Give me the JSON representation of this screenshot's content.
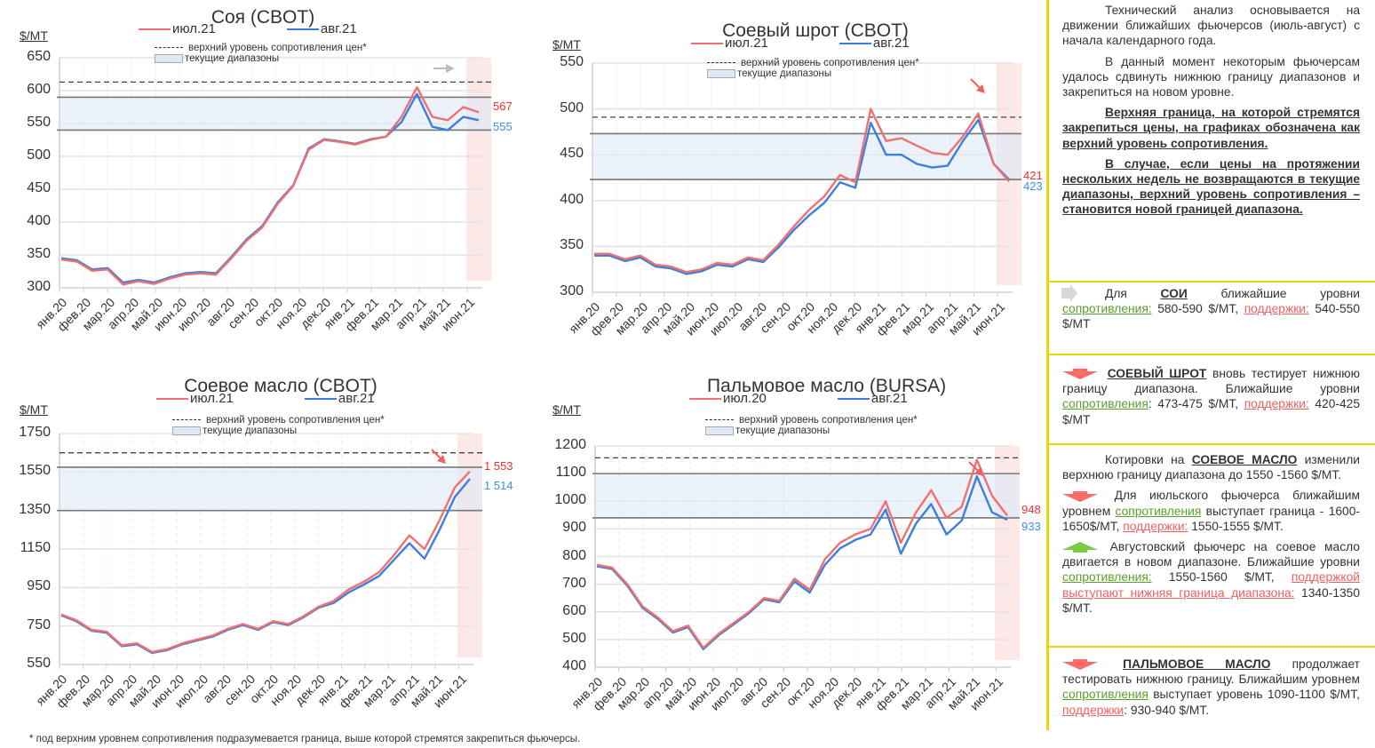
{
  "unit_label": "$/MT",
  "legend_resistance": "верхний уровень сопротивления цен*",
  "legend_range": "текущие диапазоны",
  "footnote": "* под верхним уровнем сопротивления подразумевается граница, выше которой стремятся закрепиться фьючерсы.",
  "colors": {
    "jul": "#f07070",
    "aug": "#3d7fdc",
    "range": "#dde9f7",
    "highlight": "#fde8e8",
    "panel_border": "#e6d800",
    "green": "#5aa02c",
    "red": "#f06060"
  },
  "chart_data": [
    {
      "type": "line",
      "title": "Соя (CBOT)",
      "ylabel": "$/MT",
      "ylim": [
        300,
        650
      ],
      "yticks": [
        300,
        350,
        400,
        450,
        500,
        550,
        600,
        650
      ],
      "categories": [
        "янв.20",
        "фев.20",
        "мар.20",
        "апр.20",
        "май.20",
        "июн.20",
        "июл.20",
        "авг.20",
        "сен.20",
        "окт.20",
        "ноя.20",
        "дек.20",
        "янв.21",
        "фев.21",
        "мар.21",
        "апр.21",
        "май.21",
        "июн.21"
      ],
      "resistance": 613,
      "range": [
        540,
        590
      ],
      "hint_arrow": "right",
      "series": [
        {
          "name": "июл.21",
          "end_label": "567",
          "values": [
            343,
            340,
            326,
            328,
            305,
            310,
            306,
            314,
            320,
            322,
            320,
            345,
            372,
            392,
            428,
            455,
            510,
            525,
            522,
            518,
            525,
            530,
            560,
            605,
            560,
            555,
            575,
            567
          ]
        },
        {
          "name": "авг.21",
          "end_label": "555",
          "values": [
            345,
            342,
            328,
            330,
            308,
            312,
            308,
            316,
            322,
            324,
            322,
            347,
            374,
            394,
            430,
            456,
            512,
            526,
            523,
            519,
            526,
            530,
            552,
            595,
            545,
            540,
            560,
            555
          ]
        }
      ]
    },
    {
      "type": "line",
      "title": "Соевый шрот (CBOT)",
      "ylabel": "$/MT",
      "ylim": [
        300,
        550
      ],
      "yticks": [
        300,
        350,
        400,
        450,
        500,
        550
      ],
      "categories": [
        "янв.20",
        "фев.20",
        "мар.20",
        "апр.20",
        "май.20",
        "июн.20",
        "июл.20",
        "авг.20",
        "сен.20",
        "окт.20",
        "ноя.20",
        "дек.20",
        "янв.21",
        "фев.21",
        "мар.21",
        "апр.21",
        "май.21",
        "июн.21"
      ],
      "resistance": 491,
      "range": [
        423,
        473
      ],
      "hint_arrow": "down-right",
      "series": [
        {
          "name": "июл.21",
          "end_label": "421",
          "values": [
            342,
            342,
            336,
            340,
            330,
            328,
            322,
            325,
            332,
            330,
            338,
            335,
            352,
            372,
            390,
            405,
            428,
            420,
            500,
            465,
            468,
            460,
            452,
            450,
            470,
            495,
            440,
            421
          ]
        },
        {
          "name": "авг.21",
          "end_label": "423",
          "values": [
            340,
            340,
            334,
            338,
            328,
            326,
            320,
            323,
            330,
            328,
            336,
            333,
            349,
            368,
            384,
            398,
            420,
            414,
            485,
            450,
            450,
            440,
            436,
            438,
            465,
            488,
            440,
            423
          ]
        }
      ]
    },
    {
      "type": "line",
      "title": "Соевое масло (CBOT)",
      "ylabel": "$/MT",
      "ylim": [
        550,
        1750
      ],
      "yticks": [
        550,
        750,
        950,
        1150,
        1350,
        1550,
        1750
      ],
      "categories": [
        "янв.20",
        "фев.20",
        "мар.20",
        "апр.20",
        "май.20",
        "июн.20",
        "июл.20",
        "авг.20",
        "сен.20",
        "окт.20",
        "ноя.20",
        "дек.20",
        "янв.21",
        "фев.21",
        "мар.21",
        "апр.21",
        "май.21",
        "июн.21"
      ],
      "resistance": 1650,
      "range": [
        1350,
        1575
      ],
      "hint_arrow": "down-right",
      "series": [
        {
          "name": "июл.21",
          "end_label": "1 553",
          "values": [
            810,
            780,
            730,
            720,
            650,
            660,
            615,
            630,
            660,
            680,
            700,
            735,
            760,
            735,
            775,
            760,
            800,
            850,
            880,
            940,
            980,
            1030,
            1120,
            1220,
            1150,
            1300,
            1470,
            1553
          ]
        },
        {
          "name": "авг.21",
          "end_label": "1 514",
          "values": [
            805,
            775,
            725,
            715,
            645,
            655,
            610,
            625,
            655,
            675,
            695,
            730,
            755,
            730,
            770,
            755,
            795,
            845,
            870,
            925,
            965,
            1010,
            1095,
            1180,
            1100,
            1250,
            1420,
            1514
          ]
        }
      ]
    },
    {
      "type": "line",
      "title": "Пальмовое масло (BURSA)",
      "ylabel": "$/MT",
      "ylim": [
        400,
        1200
      ],
      "yticks": [
        400,
        500,
        600,
        700,
        800,
        900,
        1000,
        1100,
        1200
      ],
      "categories": [
        "янв.20",
        "фев.20",
        "мар.20",
        "апр.20",
        "май.20",
        "июн.20",
        "июл.20",
        "авг.20",
        "сен.20",
        "окт.20",
        "ноя.20",
        "дек.20",
        "янв.21",
        "фев.21",
        "мар.21",
        "апр.21",
        "май.21",
        "июн.21"
      ],
      "resistance": 1157,
      "range": [
        940,
        1100
      ],
      "hint_arrow": "down-right",
      "series": [
        {
          "name": "июл.20",
          "end_label": "948",
          "values": [
            770,
            760,
            700,
            620,
            580,
            530,
            550,
            470,
            520,
            560,
            600,
            650,
            640,
            720,
            680,
            790,
            850,
            880,
            900,
            1000,
            850,
            960,
            1040,
            940,
            980,
            1150,
            1020,
            948
          ]
        },
        {
          "name": "авг.21",
          "end_label": "933",
          "values": [
            765,
            755,
            695,
            615,
            575,
            525,
            545,
            465,
            515,
            555,
            595,
            645,
            635,
            710,
            670,
            770,
            830,
            860,
            880,
            970,
            810,
            920,
            990,
            880,
            930,
            1090,
            960,
            933
          ]
        }
      ]
    }
  ],
  "panel": {
    "intro_1": "Технический анализ основывается на движении ближайших фьючерсов (июль-август) с начала календарного года.",
    "intro_2": "В данный момент некоторым фьючерсам удалось сдвинуть нижнюю границу диапазонов и закрепиться на новом уровне.",
    "intro_3": "Верхняя граница, на которой стремятся закрепиться цены, на графиках обозначена как верхний уровень сопротивления.",
    "intro_4": "В случае, если цены на протяжении нескольких недель не возвращаются в текущие диапазоны, верхний уровень сопротивления – становится новой границей диапазона.",
    "soy": {
      "pre": "Для",
      "name": "СОИ",
      "mid": "ближайшие уровни",
      "res_label": "сопротивления:",
      "res_value": "580-590 $/MT,",
      "sup_label": "поддержки:",
      "sup_value": "540-550 $/MT"
    },
    "meal": {
      "name": "СОЕВЫЙ ШРОТ",
      "mid": "вновь тестирует нижнюю границу диапазона. Ближайшие уровни",
      "res_label": "сопротивления",
      "res_value": ": 473-475 $/MT,",
      "sup_label": "поддержки:",
      "sup_value": "420-425 $/MT"
    },
    "oil": {
      "pre": "Котировки на",
      "name": "СОЕВОЕ МАСЛО",
      "mid": "изменили верхнюю границу диапазона до 1550 -1560 $/MT.",
      "jul_pre": "Для июльского фьючерса ближайшим уровнем",
      "jul_res_label": "сопротивления",
      "jul_res_value": "выступает граница - 1600-1650$/MT,",
      "jul_sup_label": "поддержки:",
      "jul_sup_value": "1550-1555 $/MT.",
      "aug_pre": "Августовский фьючерс на соевое масло двигается в новом диапазоне. Ближайшие уровни",
      "aug_res_label": "сопротивления:",
      "aug_res_value": "1550-1560 $/MT,",
      "aug_sup_label": "поддержкой выступают нижняя граница диапазона:",
      "aug_sup_value": "1340-1350 $/MT."
    },
    "palm": {
      "name": "ПАЛЬМОВОЕ МАСЛО",
      "mid": "продолжает тестировать нижнюю границу. Ближайшим уровнем",
      "res_label": "сопротивления",
      "res_value": "выступает уровень 1090-1100 $/MT,",
      "sup_label": "поддержки",
      "sup_value": ": 930-940 $/MT."
    }
  }
}
